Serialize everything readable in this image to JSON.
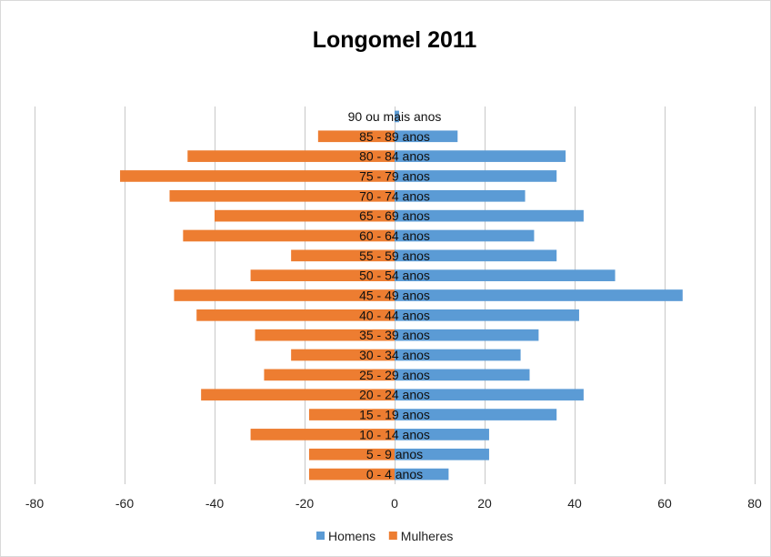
{
  "chart_data": {
    "type": "bar",
    "orientation": "horizontal",
    "title": "Longomel 2011",
    "xlabel": "",
    "ylabel": "",
    "xlim": [
      -80,
      80
    ],
    "xticks": [
      "-80",
      "-60",
      "-40",
      "-20",
      "0",
      "20",
      "40",
      "60",
      "80"
    ],
    "grid": "vertical",
    "legend_position": "bottom",
    "categories": [
      "0 - 4 anos",
      "5 - 9 anos",
      "10 - 14 anos",
      "15 - 19 anos",
      "20 - 24 anos",
      "25 - 29 anos",
      "30 - 34 anos",
      "35 - 39 anos",
      "40 - 44 anos",
      "45 - 49 anos",
      "50 - 54 anos",
      "55 - 59 anos",
      "60 - 64 anos",
      "65 - 69 anos",
      "70 - 74 anos",
      "75 - 79 anos",
      "80 - 84 anos",
      "85 - 89 anos",
      "90 ou mais anos"
    ],
    "series": [
      {
        "name": "Homens",
        "color": "#5B9BD5",
        "values": [
          12,
          21,
          21,
          36,
          42,
          30,
          28,
          32,
          41,
          64,
          49,
          36,
          31,
          42,
          29,
          36,
          38,
          14,
          1
        ]
      },
      {
        "name": "Mulheres",
        "color": "#ED7D31",
        "values": [
          -19,
          -19,
          -32,
          -19,
          -43,
          -29,
          -23,
          -31,
          -44,
          -49,
          -32,
          -23,
          -47,
          -40,
          -50,
          -61,
          -46,
          -17,
          0
        ]
      }
    ]
  }
}
